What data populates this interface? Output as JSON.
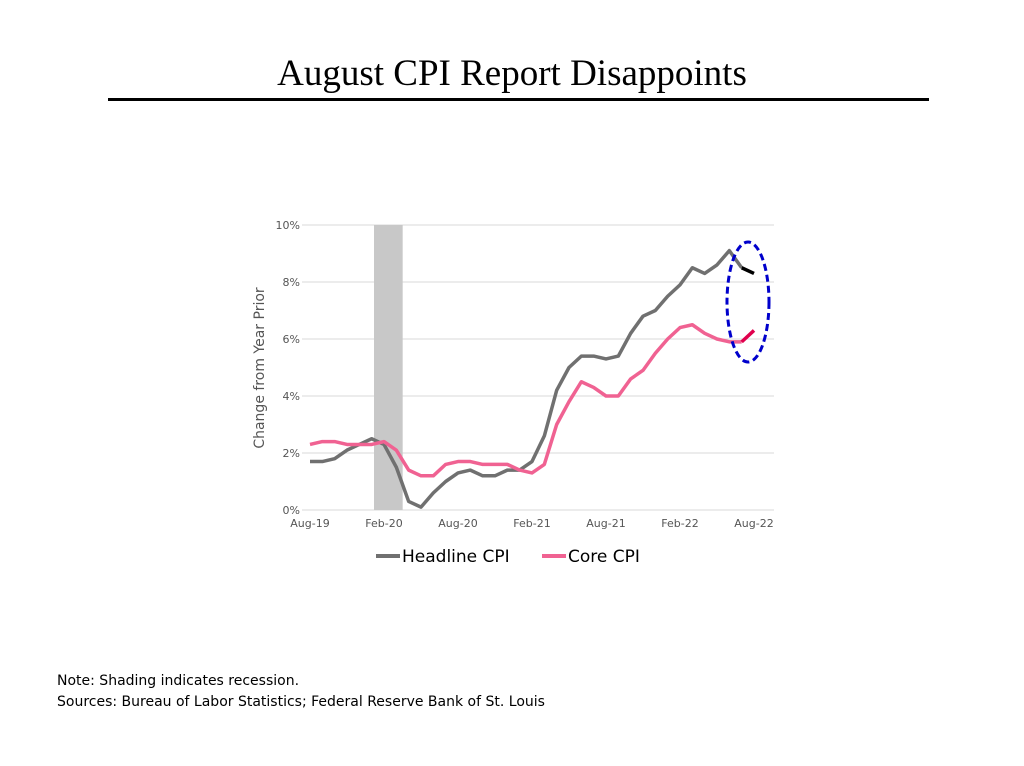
{
  "title": "August CPI Report Disappoints",
  "notes": {
    "note": "Note: Shading indicates recession.",
    "sources": "Sources: Bureau of Labor Statistics; Federal Reserve Bank of St. Louis"
  },
  "chart_data": {
    "type": "line",
    "title": "",
    "xlabel": "",
    "ylabel": "Change from Year Prior",
    "ylim": [
      0,
      10
    ],
    "yticks": [
      "0%",
      "2%",
      "4%",
      "6%",
      "8%",
      "10%"
    ],
    "xticks": [
      "Aug-19",
      "Feb-20",
      "Aug-20",
      "Feb-21",
      "Aug-21",
      "Feb-22",
      "Aug-22"
    ],
    "x_start": "Aug-19",
    "x_end": "Aug-22",
    "x_step": "monthly",
    "grid": true,
    "legend": "bottom",
    "recession_shading": [
      "Feb-20",
      "Apr-20"
    ],
    "highlight": "last month circled with dashed ellipse",
    "colors": {
      "headline": "#707070",
      "core": "#f06292",
      "headline_last": "#000000",
      "core_last": "#e0004d",
      "recession": "#c8c8c8",
      "ellipse": "#0000cc"
    },
    "series": [
      {
        "name": "Headline CPI",
        "values": [
          1.7,
          1.7,
          1.8,
          2.1,
          2.3,
          2.5,
          2.3,
          1.5,
          0.3,
          0.1,
          0.6,
          1.0,
          1.3,
          1.4,
          1.2,
          1.2,
          1.4,
          1.4,
          1.7,
          2.6,
          4.2,
          5.0,
          5.4,
          5.4,
          5.3,
          5.4,
          6.2,
          6.8,
          7.0,
          7.5,
          7.9,
          8.5,
          8.3,
          8.6,
          9.1,
          8.5,
          8.3
        ]
      },
      {
        "name": "Core CPI",
        "values": [
          2.3,
          2.4,
          2.4,
          2.3,
          2.3,
          2.3,
          2.4,
          2.1,
          1.4,
          1.2,
          1.2,
          1.6,
          1.7,
          1.7,
          1.6,
          1.6,
          1.6,
          1.4,
          1.3,
          1.6,
          3.0,
          3.8,
          4.5,
          4.3,
          4.0,
          4.0,
          4.6,
          4.9,
          5.5,
          6.0,
          6.4,
          6.5,
          6.2,
          6.0,
          5.9,
          5.9,
          6.3
        ]
      }
    ]
  }
}
